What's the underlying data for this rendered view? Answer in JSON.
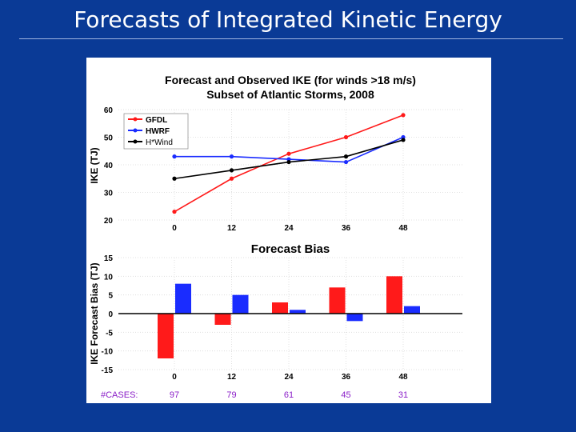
{
  "slide": {
    "title": "Forecasts of Integrated Kinetic Energy"
  },
  "colors": {
    "background": "#0a3a96",
    "gfdl": "#ff1a1a",
    "hwrf": "#1a2cff",
    "hwind": "#000000",
    "cases": "#8a1ec8"
  },
  "chart_data": [
    {
      "type": "line",
      "title": "Forecast and Observed IKE (for winds >18 m/s)",
      "subtitle": "Subset of Atlantic Storms, 2008",
      "xlabel": "",
      "ylabel": "IKE (TJ)",
      "x": [
        0,
        12,
        24,
        36,
        48
      ],
      "x_tick_labels": [
        "0",
        "12",
        "24",
        "36",
        "48"
      ],
      "ylim": [
        20,
        60
      ],
      "y_ticks": [
        20,
        30,
        40,
        50,
        60
      ],
      "grid": true,
      "legend_position": "top-left",
      "series": [
        {
          "name": "GFDL",
          "color": "#ff1a1a",
          "values": [
            23,
            35,
            44,
            50,
            58
          ]
        },
        {
          "name": "HWRF",
          "color": "#1a2cff",
          "values": [
            43,
            43,
            42,
            41,
            50
          ]
        },
        {
          "name": "H*Wind",
          "color": "#000000",
          "values": [
            35,
            38,
            41,
            43,
            49
          ]
        }
      ]
    },
    {
      "type": "bar",
      "title": "Forecast Bias",
      "ylabel": "IKE Forecast Bias (TJ)",
      "categories": [
        "0",
        "12",
        "24",
        "36",
        "48"
      ],
      "ylim": [
        -15,
        15
      ],
      "y_ticks": [
        15,
        10,
        5,
        0,
        -5,
        -10,
        -15
      ],
      "grid": true,
      "series": [
        {
          "name": "GFDL",
          "color": "#ff1a1a",
          "values": [
            -12,
            -3,
            3,
            7,
            10
          ]
        },
        {
          "name": "HWRF",
          "color": "#1a2cff",
          "values": [
            8,
            5,
            1,
            -2,
            2
          ]
        }
      ],
      "cases_label": "#CASES:",
      "cases": [
        "97",
        "79",
        "61",
        "45",
        "31"
      ]
    }
  ]
}
